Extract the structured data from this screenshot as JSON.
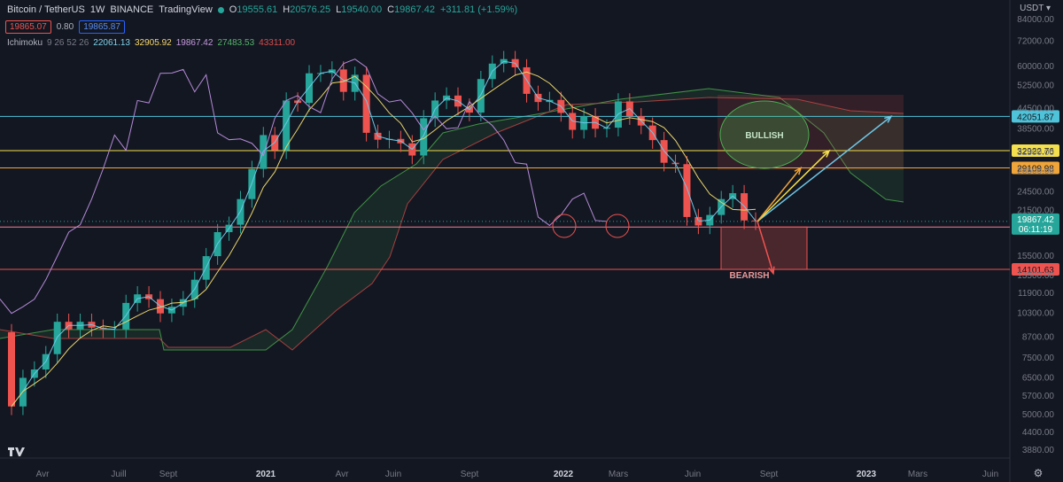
{
  "header": {
    "symbol": "Bitcoin / TetherUS",
    "interval": "1W",
    "exchange": "BINANCE",
    "source": "TradingView",
    "open_label": "O",
    "open": "19555.61",
    "high_label": "H",
    "high": "20576.25",
    "low_label": "L",
    "low": "19540.00",
    "close_label": "C",
    "close": "19867.42",
    "change": "+311.81 (+1.59%)"
  },
  "bidask": {
    "sell": "19865.07",
    "spread": "0.80",
    "buy": "19865.87"
  },
  "indicator": {
    "name": "Ichimoku",
    "params": "9 26 52 26",
    "values": [
      "22061.13",
      "32905.92",
      "19867.42",
      "27483.53",
      "43311.00"
    ],
    "colors": [
      "#7fd1e8",
      "#f5d66b",
      "#c89ae0",
      "#56b36b",
      "#d84c4c"
    ]
  },
  "price_scale": {
    "currency": "USDT"
  },
  "colors": {
    "background": "#131722",
    "up": "#26a69a",
    "down": "#ef5350",
    "tenkan": "#6ec6e6",
    "kijun": "#e8d36a",
    "chikou": "#b58ad8",
    "span_a": "#4caf50",
    "span_b": "#c94747"
  },
  "chart_data": {
    "type": "line",
    "y_scale": "log",
    "y_ticks": [
      "84000.00",
      "72000.00",
      "60000.00",
      "52500.00",
      "44500.00",
      "38500.00",
      "32500.00",
      "28500.00",
      "24500.00",
      "21500.00",
      "18500.00",
      "15500.00",
      "13500.00",
      "11900.00",
      "10300.00",
      "8700.00",
      "7500.00",
      "6500.00",
      "5700.00",
      "5000.00",
      "4400.00",
      "3880.00"
    ],
    "x_ticks": [
      "Avr",
      "Juill",
      "Sept",
      "2021",
      "Avr",
      "Juin",
      "Sept",
      "2022",
      "Mars",
      "Juin",
      "Sept",
      "2023",
      "Mars",
      "Juin"
    ],
    "horizontal_levels": [
      {
        "value": 42051.87,
        "label": "42051.87",
        "color": "#4fc3d9"
      },
      {
        "value": 32922.76,
        "label": "32922.76",
        "color": "#f4e04d"
      },
      {
        "value": 29109.98,
        "label": "29109.98",
        "color": "#f0a53a"
      },
      {
        "value": 19081.11,
        "label": "19081.11",
        "color": "#ef7e8e"
      },
      {
        "value": 14101.63,
        "label": "14101.63",
        "color": "#ef5350"
      }
    ],
    "last_price": {
      "value": 19867.42,
      "label": "19867.42",
      "countdown": "06:11:19"
    },
    "annotations": [
      {
        "text": "BULLISH",
        "color": "#c8e6c9"
      },
      {
        "text": "BEARISH",
        "color": "#ef9a9a"
      }
    ],
    "series": [
      {
        "name": "close",
        "x": [
          "2020-03-09",
          "2020-03-23",
          "2020-04-06",
          "2020-04-20",
          "2020-05-04",
          "2020-05-18",
          "2020-06-01",
          "2020-06-15",
          "2020-06-29",
          "2020-07-13",
          "2020-07-27",
          "2020-08-10",
          "2020-08-24",
          "2020-09-07",
          "2020-09-21",
          "2020-10-05",
          "2020-10-19",
          "2020-11-02",
          "2020-11-16",
          "2020-11-30",
          "2020-12-14",
          "2020-12-28",
          "2021-01-11",
          "2021-01-25",
          "2021-02-08",
          "2021-02-22",
          "2021-03-08",
          "2021-03-22",
          "2021-04-05",
          "2021-04-19",
          "2021-05-03",
          "2021-05-17",
          "2021-05-31",
          "2021-06-14",
          "2021-06-28",
          "2021-07-12",
          "2021-07-26",
          "2021-08-09",
          "2021-08-23",
          "2021-09-06",
          "2021-09-20",
          "2021-10-04",
          "2021-10-18",
          "2021-11-01",
          "2021-11-15",
          "2021-11-29",
          "2021-12-13",
          "2021-12-27",
          "2022-01-10",
          "2022-01-24",
          "2022-02-07",
          "2022-02-21",
          "2022-03-07",
          "2022-03-21",
          "2022-04-04",
          "2022-04-18",
          "2022-05-02",
          "2022-05-16",
          "2022-05-30",
          "2022-06-13",
          "2022-06-27",
          "2022-07-11",
          "2022-07-25",
          "2022-08-08",
          "2022-08-22",
          "2022-09-05"
        ],
        "values": [
          5300,
          6500,
          6900,
          7700,
          9700,
          9200,
          9700,
          9300,
          9200,
          9200,
          11100,
          11800,
          11400,
          10300,
          10800,
          11400,
          13100,
          15500,
          18400,
          19400,
          23300,
          28900,
          36800,
          33000,
          47100,
          46300,
          57200,
          57300,
          58800,
          50100,
          56600,
          37400,
          35600,
          35800,
          34700,
          31800,
          41500,
          47100,
          48800,
          45100,
          43200,
          54900,
          61300,
          63300,
          59700,
          49400,
          46600,
          47300,
          43100,
          38200,
          42100,
          38500,
          38800,
          46800,
          42100,
          39400,
          35500,
          30200,
          29900,
          20500,
          19300,
          20800,
          23300,
          24300,
          20000,
          19867
        ]
      }
    ]
  }
}
